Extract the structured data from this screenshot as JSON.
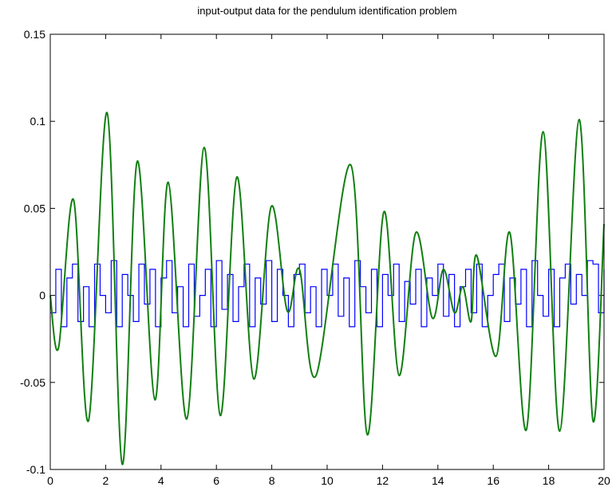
{
  "chart_data": {
    "type": "line",
    "title": "input-output data for the pendulum identification problem",
    "series": [
      {
        "color": "#0000ff",
        "step": true,
        "x": [
          0,
          0.2,
          0.4,
          0.6,
          0.8,
          1,
          1.2,
          1.4,
          1.6,
          1.8,
          2,
          2.2,
          2.4,
          2.6,
          2.8,
          3,
          3.2,
          3.4,
          3.6,
          3.8,
          4,
          4.2,
          4.4,
          4.6,
          4.8,
          5,
          5.2,
          5.4,
          5.6,
          5.8,
          6,
          6.2,
          6.4,
          6.6,
          6.8,
          7,
          7.2,
          7.4,
          7.6,
          7.8,
          8,
          8.2,
          8.4,
          8.6,
          8.8,
          9,
          9.2,
          9.4,
          9.6,
          9.8,
          10,
          10.2,
          10.4,
          10.6,
          10.8,
          11,
          11.2,
          11.4,
          11.6,
          11.8,
          12,
          12.2,
          12.4,
          12.6,
          12.8,
          13,
          13.2,
          13.4,
          13.6,
          13.8,
          14,
          14.2,
          14.4,
          14.6,
          14.8,
          15,
          15.2,
          15.4,
          15.6,
          15.8,
          16,
          16.2,
          16.4,
          16.6,
          16.8,
          17,
          17.2,
          17.4,
          17.6,
          17.8,
          18,
          18.2,
          18.4,
          18.6,
          18.8,
          19,
          19.2,
          19.4,
          19.6,
          19.8,
          20
        ],
        "values": [
          -0.01,
          0.015,
          -0.018,
          0.01,
          0.018,
          -0.015,
          0.005,
          -0.018,
          0.018,
          0.0,
          -0.01,
          0.02,
          -0.018,
          0.012,
          0.0,
          -0.015,
          0.018,
          -0.005,
          0.015,
          -0.018,
          0.01,
          0.02,
          -0.01,
          0.005,
          -0.018,
          0.018,
          -0.012,
          0.0,
          0.015,
          -0.018,
          0.02,
          -0.008,
          0.012,
          -0.015,
          0.005,
          0.018,
          -0.018,
          0.01,
          -0.005,
          0.02,
          -0.015,
          0.015,
          0.0,
          -0.018,
          0.012,
          0.018,
          -0.01,
          0.005,
          -0.018,
          0.015,
          0.0,
          0.018,
          -0.012,
          0.01,
          -0.018,
          0.02,
          0.005,
          -0.01,
          0.015,
          -0.018,
          0.012,
          0.0,
          0.018,
          -0.015,
          0.008,
          -0.005,
          0.015,
          -0.018,
          0.01,
          0.0,
          0.018,
          -0.012,
          0.012,
          -0.018,
          0.005,
          0.015,
          -0.01,
          0.018,
          -0.018,
          0.0,
          0.012,
          0.018,
          -0.015,
          0.01,
          -0.005,
          0.015,
          -0.018,
          0.02,
          0.0,
          -0.012,
          0.015,
          -0.018,
          0.01,
          0.018,
          -0.005,
          0.012,
          0.0,
          0.02,
          0.018,
          -0.01,
          0.015
        ]
      },
      {
        "color": "#107f10",
        "x": [
          0,
          0.3,
          0.84,
          1.38,
          2.05,
          2.6,
          3.14,
          3.78,
          4.26,
          4.93,
          5.56,
          6.14,
          6.74,
          7.35,
          7.98,
          8.56,
          9.0,
          9.6,
          10.85,
          11.45,
          12.05,
          12.6,
          13.2,
          13.8,
          14.2,
          14.6,
          14.9,
          15.2,
          15.4,
          16.1,
          16.6,
          17.2,
          17.8,
          18.4,
          19.1,
          19.6,
          20
        ],
        "values": [
          0,
          -0.03,
          0.055,
          -0.072,
          0.105,
          -0.097,
          0.077,
          -0.06,
          0.065,
          -0.071,
          0.085,
          -0.069,
          0.068,
          -0.048,
          0.051,
          -0.009,
          0.015,
          -0.046,
          0.075,
          -0.08,
          0.048,
          -0.046,
          0.036,
          -0.013,
          0.015,
          -0.01,
          0.005,
          -0.015,
          0.023,
          -0.035,
          0.036,
          -0.077,
          0.094,
          -0.078,
          0.101,
          -0.072,
          0.041
        ]
      }
    ],
    "xlim": [
      0,
      20
    ],
    "xticks": [
      0,
      2,
      4,
      6,
      8,
      10,
      12,
      14,
      16,
      18,
      20
    ],
    "ylim": [
      -0.1,
      0.15
    ],
    "yticks": [
      -0.1,
      -0.05,
      0,
      0.05,
      0.1,
      0.15
    ]
  }
}
